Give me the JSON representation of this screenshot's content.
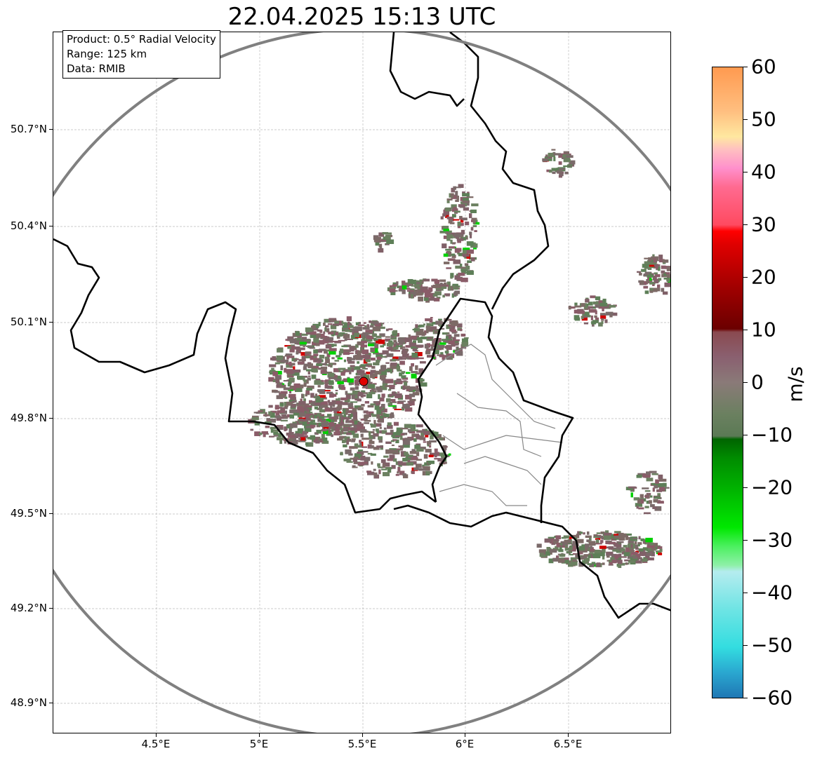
{
  "title": "22.04.2025 15:13 UTC",
  "info": {
    "product": "Product: 0.5° Radial Velocity",
    "range": "Range: 125 km",
    "data": "Data: RMIB"
  },
  "axes": {
    "lat_ticks": [
      "50.7°N",
      "50.4°N",
      "50.1°N",
      "49.8°N",
      "49.5°N",
      "49.2°N",
      "48.9°N"
    ],
    "lon_ticks": [
      "4.5°E",
      "5°E",
      "5.5°E",
      "6°E",
      "6.5°E"
    ]
  },
  "colorbar": {
    "label": "m/s",
    "ticks": [
      "60",
      "50",
      "40",
      "30",
      "20",
      "10",
      "0",
      "−10",
      "−20",
      "−30",
      "−40",
      "−50",
      "−60"
    ],
    "range": [
      -60,
      60
    ]
  },
  "radar_site": {
    "color": "#e00000"
  }
}
